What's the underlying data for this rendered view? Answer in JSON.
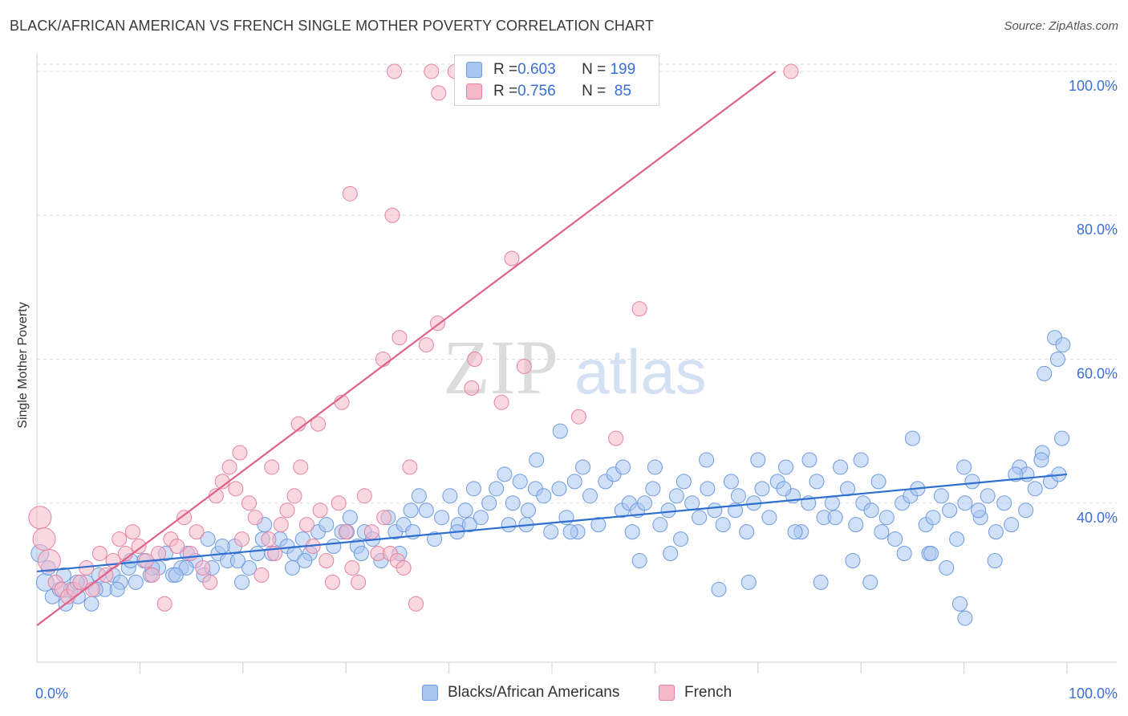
{
  "title": "BLACK/AFRICAN AMERICAN VS FRENCH SINGLE MOTHER POVERTY CORRELATION CHART",
  "source": "Source: ZipAtlas.com",
  "watermark": {
    "zip": "ZIP",
    "atlas": "atlas"
  },
  "colors": {
    "blue_fill": "#a9c6f0",
    "blue_stroke": "#6e9be0",
    "blue_line": "#2e6fcf",
    "pink_fill": "#f5b8cb",
    "pink_stroke": "#e6829f",
    "pink_line": "#e0628a",
    "tick_label": "#3a6fd8",
    "grid": "#dedede"
  },
  "legend_stats": [
    {
      "r_label": "R = ",
      "r_value": "0.603",
      "n_label": "N = ",
      "n_value": "199"
    },
    {
      "r_label": "R = ",
      "r_value": "0.756",
      "n_label": "N = ",
      "n_value": " 85"
    }
  ],
  "chart_data": {
    "type": "scatter",
    "title": "BLACK/AFRICAN AMERICAN VS FRENCH SINGLE MOTHER POVERTY CORRELATION CHART",
    "xlabel": "",
    "ylabel": "Single Mother Poverty",
    "x_tick_labels": [
      "0.0%",
      "100.0%"
    ],
    "y_tick_labels": [
      "40.0%",
      "60.0%",
      "80.0%",
      "100.0%"
    ],
    "y_tick_values": [
      40,
      60,
      80,
      100
    ],
    "xlim": [
      0,
      100
    ],
    "ylim": [
      19,
      101
    ],
    "grid": true,
    "legend_position": "bottom-center",
    "series": [
      {
        "name": "Blacks/African Americans",
        "r": 0.603,
        "n": 199,
        "trend": {
          "x1": 0,
          "y1": 30.5,
          "x2": 100,
          "y2": 44.0
        },
        "points": [
          [
            0.3,
            33
          ],
          [
            0.8,
            29
          ],
          [
            1.5,
            27
          ],
          [
            2.2,
            28
          ],
          [
            2.8,
            26
          ],
          [
            3.3,
            28
          ],
          [
            4,
            27
          ],
          [
            4.8,
            29
          ],
          [
            5.3,
            26
          ],
          [
            6,
            30
          ],
          [
            6.6,
            28
          ],
          [
            7.4,
            30
          ],
          [
            8.1,
            29
          ],
          [
            8.9,
            31
          ],
          [
            9.6,
            29
          ],
          [
            10.4,
            32
          ],
          [
            11,
            30
          ],
          [
            11.8,
            31
          ],
          [
            12.5,
            33
          ],
          [
            13.2,
            30
          ],
          [
            14,
            31
          ],
          [
            14.6,
            33
          ],
          [
            15.4,
            32
          ],
          [
            16.2,
            30
          ],
          [
            17,
            31
          ],
          [
            17.6,
            33
          ],
          [
            18.5,
            32
          ],
          [
            19.2,
            34
          ],
          [
            19.9,
            29
          ],
          [
            20.6,
            31
          ],
          [
            21.4,
            33
          ],
          [
            22.1,
            37
          ],
          [
            22.8,
            33
          ],
          [
            23.6,
            35
          ],
          [
            24.3,
            34
          ],
          [
            25,
            33
          ],
          [
            25.8,
            35
          ],
          [
            26.5,
            33
          ],
          [
            27.3,
            36
          ],
          [
            28.1,
            37
          ],
          [
            28.8,
            34
          ],
          [
            29.6,
            36
          ],
          [
            30.4,
            38
          ],
          [
            31.1,
            34
          ],
          [
            31.8,
            36
          ],
          [
            32.6,
            35
          ],
          [
            33.4,
            32
          ],
          [
            34.1,
            38
          ],
          [
            34.8,
            36
          ],
          [
            35.6,
            37
          ],
          [
            36.3,
            39
          ],
          [
            37.1,
            41
          ],
          [
            37.8,
            39
          ],
          [
            38.6,
            35
          ],
          [
            39.3,
            38
          ],
          [
            40.1,
            41
          ],
          [
            40.9,
            37
          ],
          [
            41.6,
            39
          ],
          [
            42.4,
            42
          ],
          [
            43.1,
            38
          ],
          [
            43.9,
            40
          ],
          [
            44.6,
            42
          ],
          [
            45.4,
            44
          ],
          [
            46.2,
            40
          ],
          [
            46.9,
            43
          ],
          [
            47.7,
            39
          ],
          [
            48.4,
            42
          ],
          [
            49.2,
            41
          ],
          [
            49.9,
            36
          ],
          [
            50.7,
            42
          ],
          [
            51.4,
            38
          ],
          [
            52.2,
            43
          ],
          [
            53,
            45
          ],
          [
            53.7,
            41
          ],
          [
            54.5,
            37
          ],
          [
            55.2,
            43
          ],
          [
            56,
            44
          ],
          [
            56.8,
            39
          ],
          [
            57.5,
            40
          ],
          [
            58.3,
            39
          ],
          [
            59,
            40
          ],
          [
            59.8,
            42
          ],
          [
            60.5,
            37
          ],
          [
            61.3,
            39
          ],
          [
            62.1,
            41
          ],
          [
            62.8,
            43
          ],
          [
            63.6,
            40
          ],
          [
            64.3,
            38
          ],
          [
            65.1,
            42
          ],
          [
            65.8,
            39
          ],
          [
            66.6,
            37
          ],
          [
            67.4,
            43
          ],
          [
            68.1,
            41
          ],
          [
            68.9,
            36
          ],
          [
            69.6,
            40
          ],
          [
            70.4,
            42
          ],
          [
            71.1,
            38
          ],
          [
            71.9,
            43
          ],
          [
            72.7,
            45
          ],
          [
            73.4,
            41
          ],
          [
            74.2,
            36
          ],
          [
            74.9,
            40
          ],
          [
            75.7,
            43
          ],
          [
            76.4,
            38
          ],
          [
            77.2,
            40
          ],
          [
            78,
            45
          ],
          [
            78.7,
            42
          ],
          [
            79.5,
            37
          ],
          [
            80.2,
            40
          ],
          [
            81,
            39
          ],
          [
            81.7,
            43
          ],
          [
            82.5,
            38
          ],
          [
            83.3,
            35
          ],
          [
            84,
            40
          ],
          [
            84.8,
            41
          ],
          [
            85.5,
            42
          ],
          [
            86.3,
            37
          ],
          [
            87,
            38
          ],
          [
            87.8,
            41
          ],
          [
            88.6,
            39
          ],
          [
            89.3,
            35
          ],
          [
            90.1,
            40
          ],
          [
            90.8,
            43
          ],
          [
            91.6,
            38
          ],
          [
            92.3,
            41
          ],
          [
            93.1,
            36
          ],
          [
            93.9,
            40
          ],
          [
            94.6,
            37
          ],
          [
            95.4,
            45
          ],
          [
            96.1,
            44
          ],
          [
            96.9,
            42
          ],
          [
            97.6,
            47
          ],
          [
            98.4,
            43
          ],
          [
            99.2,
            44
          ],
          [
            14.5,
            31
          ],
          [
            18,
            34
          ],
          [
            26,
            32
          ],
          [
            31.5,
            33
          ],
          [
            36.5,
            36
          ],
          [
            42,
            37
          ],
          [
            47.5,
            37
          ],
          [
            52.5,
            36
          ],
          [
            57.8,
            36
          ],
          [
            62.5,
            35
          ],
          [
            67.8,
            39
          ],
          [
            72.5,
            42
          ],
          [
            77.5,
            38
          ],
          [
            82,
            36
          ],
          [
            86.6,
            33
          ],
          [
            91.4,
            39
          ],
          [
            96,
            39
          ],
          [
            50.8,
            50
          ],
          [
            60,
            45
          ],
          [
            65,
            46
          ],
          [
            70,
            46
          ],
          [
            75,
            46
          ],
          [
            80,
            46
          ],
          [
            85,
            49
          ],
          [
            90,
            45
          ],
          [
            95,
            44
          ],
          [
            99.5,
            49
          ],
          [
            97.5,
            46
          ],
          [
            98.8,
            63
          ],
          [
            99.1,
            60
          ],
          [
            99.6,
            62
          ],
          [
            97.8,
            58
          ],
          [
            48.5,
            46
          ],
          [
            56.9,
            45
          ],
          [
            61.5,
            33
          ],
          [
            69.1,
            29
          ],
          [
            76.1,
            29
          ],
          [
            80.9,
            29
          ],
          [
            86.8,
            33
          ],
          [
            88.3,
            31
          ],
          [
            89.6,
            26
          ],
          [
            90.1,
            24
          ],
          [
            93,
            32
          ],
          [
            84.2,
            33
          ],
          [
            79.2,
            32
          ],
          [
            73.6,
            36
          ],
          [
            66.2,
            28
          ],
          [
            58.5,
            32
          ],
          [
            51.8,
            36
          ],
          [
            45.8,
            37
          ],
          [
            40.8,
            36
          ],
          [
            35.2,
            33
          ],
          [
            30.1,
            36
          ],
          [
            24.8,
            31
          ],
          [
            19.5,
            32
          ],
          [
            13.5,
            30
          ],
          [
            9.1,
            32
          ],
          [
            5.7,
            28
          ],
          [
            2.6,
            30
          ],
          [
            1.1,
            31
          ],
          [
            3.9,
            29
          ],
          [
            7.8,
            28
          ],
          [
            11.2,
            31
          ],
          [
            16.6,
            35
          ],
          [
            21.9,
            35
          ]
        ]
      },
      {
        "name": "French",
        "r": 0.756,
        "n": 85,
        "trend": {
          "x1": 0,
          "y1": 23.0,
          "x2": 71.7,
          "y2": 100.0
        },
        "points": [
          [
            0.3,
            38
          ],
          [
            0.7,
            35
          ],
          [
            1.2,
            32
          ],
          [
            1.8,
            29
          ],
          [
            2.4,
            28
          ],
          [
            3,
            27
          ],
          [
            3.6,
            28
          ],
          [
            4.2,
            29
          ],
          [
            4.8,
            31
          ],
          [
            5.4,
            28
          ],
          [
            6.1,
            33
          ],
          [
            6.7,
            30
          ],
          [
            7.4,
            32
          ],
          [
            8,
            35
          ],
          [
            8.6,
            33
          ],
          [
            9.3,
            36
          ],
          [
            9.9,
            34
          ],
          [
            10.6,
            32
          ],
          [
            11.2,
            30
          ],
          [
            11.8,
            33
          ],
          [
            12.4,
            26
          ],
          [
            13,
            35
          ],
          [
            13.6,
            34
          ],
          [
            14.3,
            38
          ],
          [
            14.9,
            33
          ],
          [
            15.5,
            36
          ],
          [
            16.1,
            31
          ],
          [
            16.8,
            29
          ],
          [
            17.4,
            41
          ],
          [
            18,
            43
          ],
          [
            18.7,
            45
          ],
          [
            19.3,
            42
          ],
          [
            19.9,
            35
          ],
          [
            20.6,
            40
          ],
          [
            21.2,
            38
          ],
          [
            21.8,
            30
          ],
          [
            22.5,
            35
          ],
          [
            23.1,
            33
          ],
          [
            23.7,
            37
          ],
          [
            24.3,
            39
          ],
          [
            25,
            41
          ],
          [
            25.6,
            45
          ],
          [
            26.2,
            37
          ],
          [
            26.8,
            34
          ],
          [
            27.5,
            39
          ],
          [
            28.1,
            32
          ],
          [
            28.7,
            29
          ],
          [
            29.3,
            40
          ],
          [
            30,
            36
          ],
          [
            30.6,
            31
          ],
          [
            31.2,
            29
          ],
          [
            31.8,
            41
          ],
          [
            32.5,
            36
          ],
          [
            33.1,
            33
          ],
          [
            33.7,
            38
          ],
          [
            34.3,
            33
          ],
          [
            35,
            32
          ],
          [
            35.6,
            31
          ],
          [
            36.2,
            45
          ],
          [
            36.8,
            26
          ],
          [
            19.7,
            47
          ],
          [
            22.8,
            45
          ],
          [
            25.4,
            51
          ],
          [
            27.3,
            51
          ],
          [
            29.6,
            54
          ],
          [
            33.6,
            60
          ],
          [
            42.5,
            60
          ],
          [
            35.2,
            63
          ],
          [
            37.8,
            62
          ],
          [
            38.9,
            65
          ],
          [
            42.2,
            56
          ],
          [
            45.1,
            54
          ],
          [
            46.1,
            74
          ],
          [
            30.4,
            83
          ],
          [
            34.5,
            80
          ],
          [
            47.3,
            59
          ],
          [
            56.2,
            49
          ],
          [
            58.5,
            67
          ],
          [
            52.6,
            52
          ],
          [
            34.7,
            100
          ],
          [
            38.3,
            100
          ],
          [
            40.6,
            100
          ],
          [
            39,
            97
          ],
          [
            51.7,
            100
          ],
          [
            73.2,
            100
          ]
        ]
      }
    ]
  },
  "bottom_legend": [
    {
      "label": "Blacks/African Americans"
    },
    {
      "label": "French"
    }
  ]
}
